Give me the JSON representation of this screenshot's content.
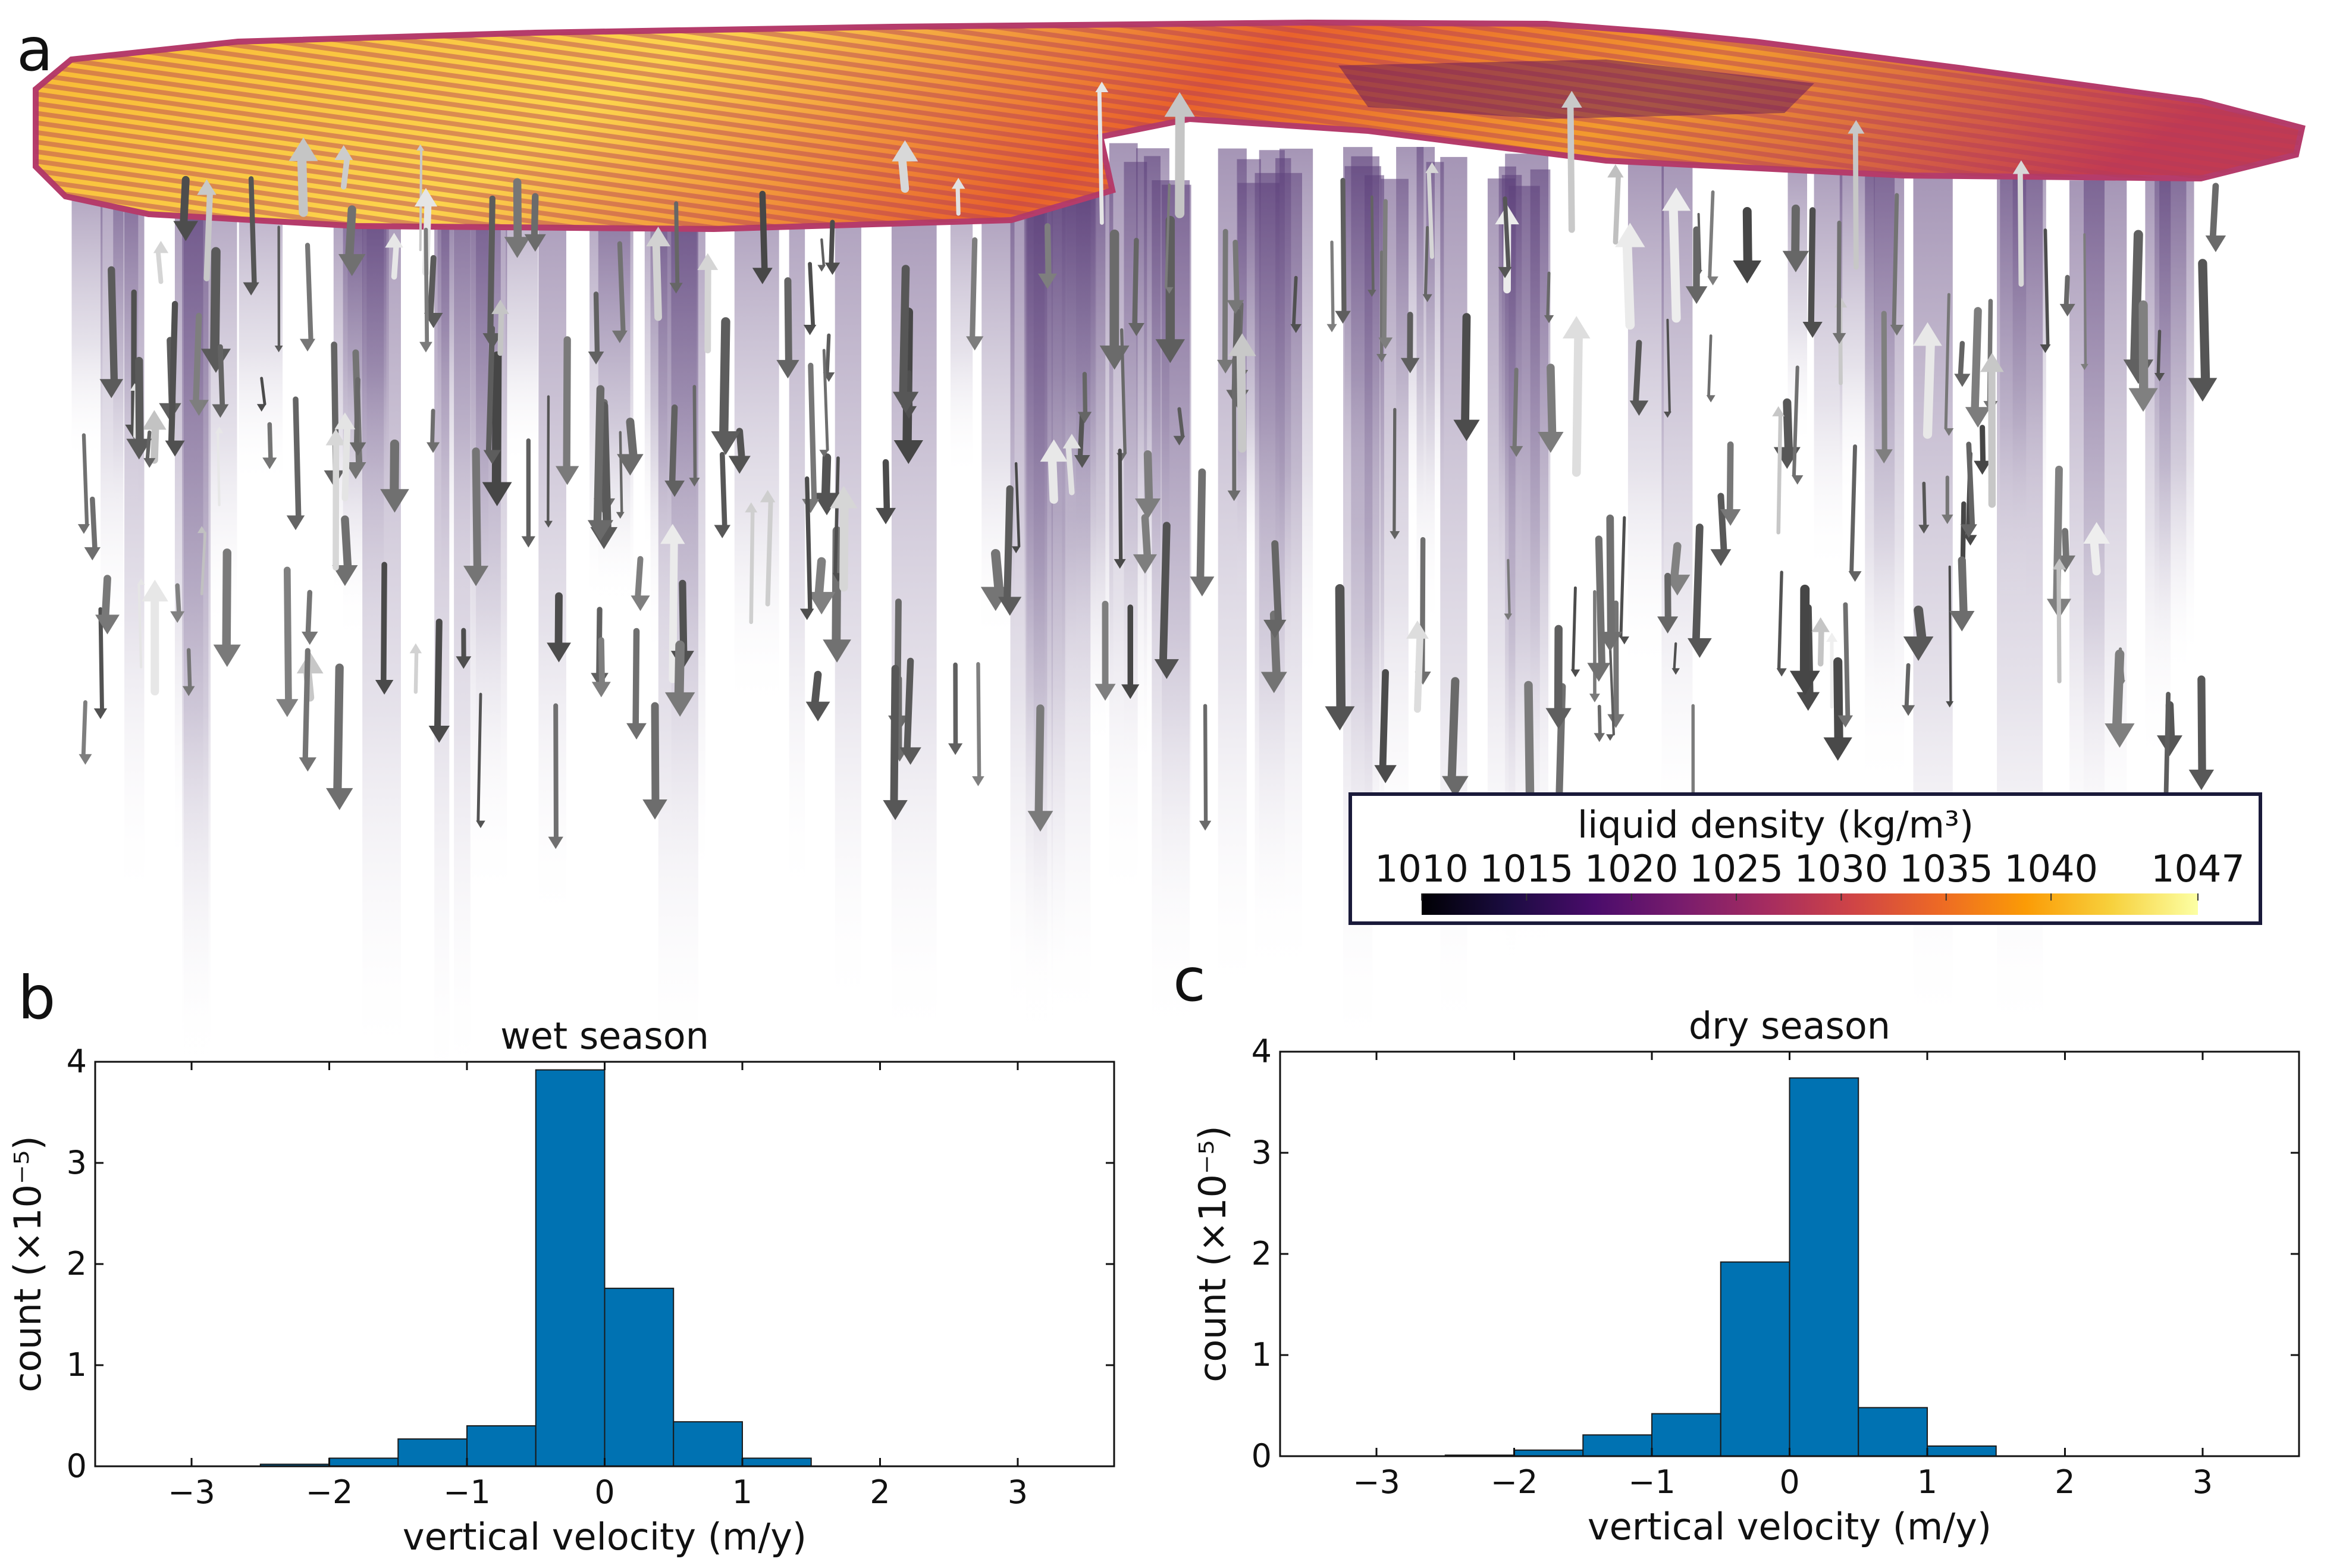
{
  "panels": {
    "a": "a",
    "b": "b",
    "c": "c"
  },
  "colorbar": {
    "title": "liquid density (kg/m³)",
    "ticks": [
      1010,
      1015,
      1020,
      1025,
      1030,
      1035,
      1040,
      1047
    ],
    "tick_labels": [
      "1010",
      "1015",
      "1020",
      "1025",
      "1030",
      "1035",
      "1040",
      "1047"
    ],
    "range": [
      1010,
      1047
    ],
    "colormap": "inferno",
    "stops": [
      "#000004",
      "#1b0c41",
      "#4a0c6b",
      "#781c6d",
      "#a52c60",
      "#cf4446",
      "#ed6925",
      "#fb9b06",
      "#f7d13d",
      "#fcffa4"
    ]
  },
  "scene": {
    "description_colors": {
      "box_border": "#1a1a3a",
      "arrow": "#5a5a5a",
      "column": "#8a7aa0"
    }
  },
  "chart_data": [
    {
      "type": "bar",
      "title": "wet season",
      "xlabel": "vertical velocity (m/y)",
      "ylabel": "count (×10⁻⁵)",
      "xlim": [
        -3.7,
        3.7
      ],
      "ylim": [
        0,
        4
      ],
      "xticks": [
        -3,
        -2,
        -1,
        0,
        1,
        2,
        3
      ],
      "xtick_labels": [
        "−3",
        "−2",
        "−1",
        "0",
        "1",
        "2",
        "3"
      ],
      "yticks": [
        0,
        1,
        2,
        3,
        4
      ],
      "ytick_labels": [
        "0",
        "1",
        "2",
        "3",
        "4"
      ],
      "bin_width": 0.5,
      "bin_edges": [
        -2.5,
        -2.0,
        -1.5,
        -1.0,
        -0.5,
        0.0,
        0.5,
        1.0,
        1.5
      ],
      "values": [
        0.02,
        0.08,
        0.27,
        0.4,
        3.92,
        1.76,
        0.44,
        0.08
      ],
      "color": "#0072b2"
    },
    {
      "type": "bar",
      "title": "dry season",
      "xlabel": "vertical velocity (m/y)",
      "ylabel": "count (×10⁻⁵)",
      "xlim": [
        -3.7,
        3.7
      ],
      "ylim": [
        0,
        4
      ],
      "xticks": [
        -3,
        -2,
        -1,
        0,
        1,
        2,
        3
      ],
      "xtick_labels": [
        "−3",
        "−2",
        "−1",
        "0",
        "1",
        "2",
        "3"
      ],
      "yticks": [
        0,
        1,
        2,
        3,
        4
      ],
      "ytick_labels": [
        "0",
        "1",
        "2",
        "3",
        "4"
      ],
      "bin_width": 0.5,
      "bin_edges": [
        -2.5,
        -2.0,
        -1.5,
        -1.0,
        -0.5,
        0.0,
        0.5,
        1.0,
        1.5
      ],
      "values": [
        0.01,
        0.06,
        0.21,
        0.42,
        1.92,
        3.74,
        0.48,
        0.1
      ],
      "color": "#0072b2"
    }
  ]
}
